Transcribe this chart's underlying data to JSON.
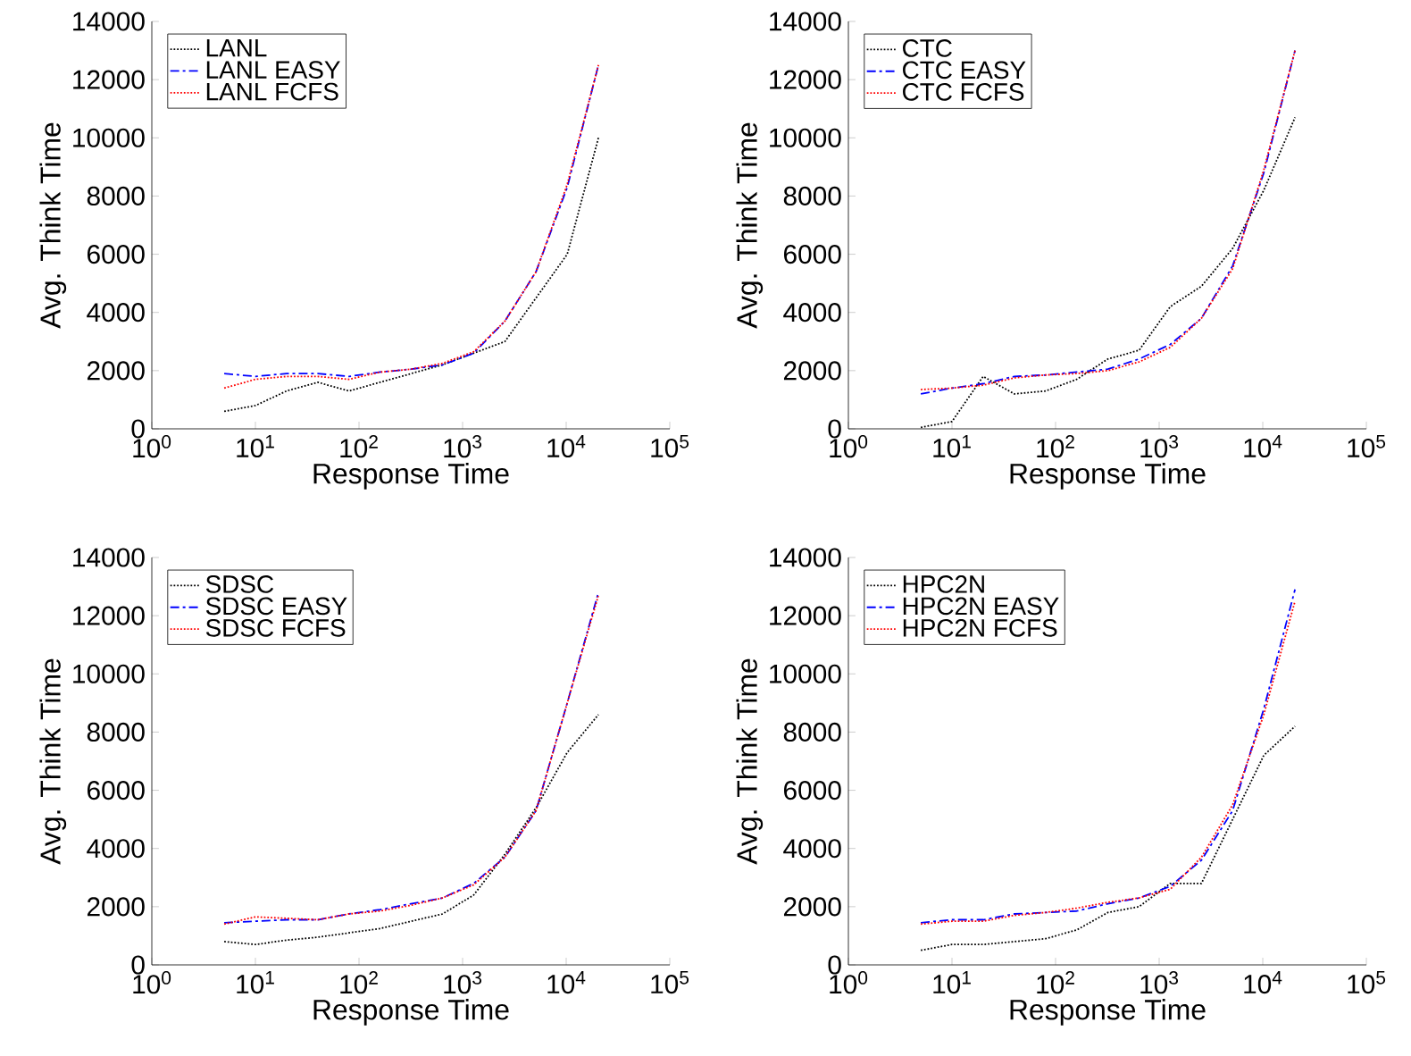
{
  "chart_data": [
    {
      "type": "line",
      "xlabel": "Response Time",
      "ylabel": "Avg. Think Time",
      "log": "x",
      "legend": "top left",
      "grid": false,
      "xlim": [
        1,
        100000
      ],
      "ylim": [
        0,
        14000
      ],
      "xticks": [
        {
          "value": 1,
          "label": "10$^{0}$"
        },
        {
          "value": 10,
          "label": "10$^{1}$"
        },
        {
          "value": 100,
          "label": "10$^{2}$"
        },
        {
          "value": 1000,
          "label": "10$^{3}$"
        },
        {
          "value": 10000,
          "label": "10$^{4}$"
        },
        {
          "value": 100000,
          "label": "10$^{5}$"
        }
      ],
      "yticks": [
        0,
        2000,
        4000,
        6000,
        8000,
        10000,
        12000,
        14000
      ],
      "x": [
        5,
        10,
        20,
        40,
        80,
        160,
        320,
        640,
        1280,
        2560,
        5120,
        10240,
        20480
      ],
      "series": [
        {
          "name": "LANL",
          "color": "#000000",
          "line_style": "dotted",
          "values": [
            600,
            800,
            1300,
            1600,
            1300,
            1600,
            1900,
            2200,
            2600,
            3000,
            4500,
            6000,
            10000
          ]
        },
        {
          "name": "LANL EASY",
          "color": "#0000ff",
          "line_style": "dashed",
          "values": [
            1900,
            1800,
            1900,
            1900,
            1800,
            1950,
            2050,
            2200,
            2600,
            3700,
            5400,
            8300,
            12500
          ]
        },
        {
          "name": "LANL FCFS",
          "color": "#ff0000",
          "line_style": "dotted",
          "values": [
            1400,
            1700,
            1800,
            1800,
            1700,
            1950,
            2050,
            2250,
            2650,
            3700,
            5400,
            8400,
            12500
          ]
        }
      ]
    },
    {
      "type": "line",
      "xlabel": "Response Time",
      "ylabel": "Avg. Think Time",
      "log": "x",
      "legend": "top left",
      "grid": false,
      "xlim": [
        1,
        100000
      ],
      "ylim": [
        0,
        14000
      ],
      "xticks": [
        {
          "value": 1,
          "label": "10$^{0}$"
        },
        {
          "value": 10,
          "label": "10$^{1}$"
        },
        {
          "value": 100,
          "label": "10$^{2}$"
        },
        {
          "value": 1000,
          "label": "10$^{3}$"
        },
        {
          "value": 10000,
          "label": "10$^{4}$"
        },
        {
          "value": 100000,
          "label": "10$^{5}$"
        }
      ],
      "yticks": [
        0,
        2000,
        4000,
        6000,
        8000,
        10000,
        12000,
        14000
      ],
      "x": [
        5,
        10,
        20,
        40,
        80,
        160,
        320,
        640,
        1280,
        2560,
        5120,
        10240,
        20480
      ],
      "series": [
        {
          "name": "CTC",
          "color": "#000000",
          "line_style": "dotted",
          "values": [
            50,
            250,
            1800,
            1200,
            1300,
            1700,
            2400,
            2700,
            4200,
            4900,
            6200,
            8200,
            10700
          ]
        },
        {
          "name": "CTC EASY",
          "color": "#0000ff",
          "line_style": "dashed",
          "values": [
            1200,
            1400,
            1550,
            1800,
            1850,
            1950,
            2050,
            2400,
            2900,
            3800,
            5600,
            8800,
            13000
          ]
        },
        {
          "name": "CTC FCFS",
          "color": "#ff0000",
          "line_style": "dotted",
          "values": [
            1350,
            1400,
            1500,
            1750,
            1850,
            1900,
            2000,
            2300,
            2800,
            3800,
            5500,
            8900,
            13000
          ]
        }
      ]
    },
    {
      "type": "line",
      "xlabel": "Response Time",
      "ylabel": "Avg. Think Time",
      "log": "x",
      "legend": "top left",
      "grid": false,
      "xlim": [
        1,
        100000
      ],
      "ylim": [
        0,
        14000
      ],
      "xticks": [
        {
          "value": 1,
          "label": "10$^{0}$"
        },
        {
          "value": 10,
          "label": "10$^{1}$"
        },
        {
          "value": 100,
          "label": "10$^{2}$"
        },
        {
          "value": 1000,
          "label": "10$^{3}$"
        },
        {
          "value": 10000,
          "label": "10$^{4}$"
        },
        {
          "value": 100000,
          "label": "10$^{5}$"
        }
      ],
      "yticks": [
        0,
        2000,
        4000,
        6000,
        8000,
        10000,
        12000,
        14000
      ],
      "x": [
        5,
        10,
        20,
        40,
        80,
        160,
        320,
        640,
        1280,
        2560,
        5120,
        10240,
        20480
      ],
      "series": [
        {
          "name": "SDSC",
          "color": "#000000",
          "line_style": "dotted",
          "values": [
            800,
            700,
            850,
            950,
            1100,
            1250,
            1500,
            1750,
            2400,
            3800,
            5400,
            7300,
            8600
          ]
        },
        {
          "name": "SDSC EASY",
          "color": "#0000ff",
          "line_style": "dashed",
          "values": [
            1450,
            1500,
            1550,
            1550,
            1750,
            1900,
            2100,
            2300,
            2800,
            3700,
            5300,
            9000,
            12800
          ]
        },
        {
          "name": "SDSC FCFS",
          "color": "#ff0000",
          "line_style": "dotted",
          "values": [
            1400,
            1650,
            1600,
            1550,
            1750,
            1850,
            2050,
            2300,
            2750,
            3700,
            5300,
            9000,
            12700
          ]
        }
      ]
    },
    {
      "type": "line",
      "xlabel": "Response Time",
      "ylabel": "Avg. Think Time",
      "log": "x",
      "legend": "top left",
      "grid": false,
      "xlim": [
        1,
        100000
      ],
      "ylim": [
        0,
        14000
      ],
      "xticks": [
        {
          "value": 1,
          "label": "10$^{0}$"
        },
        {
          "value": 10,
          "label": "10$^{1}$"
        },
        {
          "value": 100,
          "label": "10$^{2}$"
        },
        {
          "value": 1000,
          "label": "10$^{3}$"
        },
        {
          "value": 10000,
          "label": "10$^{4}$"
        },
        {
          "value": 100000,
          "label": "10$^{5}$"
        }
      ],
      "yticks": [
        0,
        2000,
        4000,
        6000,
        8000,
        10000,
        12000,
        14000
      ],
      "x": [
        5,
        10,
        20,
        40,
        80,
        160,
        320,
        640,
        1280,
        2560,
        5120,
        10240,
        20480
      ],
      "series": [
        {
          "name": "HPC2N",
          "color": "#000000",
          "line_style": "dotted",
          "values": [
            500,
            700,
            700,
            800,
            900,
            1200,
            1800,
            2000,
            2800,
            2800,
            5000,
            7200,
            8200
          ]
        },
        {
          "name": "HPC2N EASY",
          "color": "#0000ff",
          "line_style": "dashed",
          "values": [
            1450,
            1550,
            1550,
            1750,
            1800,
            1850,
            2100,
            2300,
            2700,
            3600,
            5300,
            8800,
            12900
          ]
        },
        {
          "name": "HPC2N FCFS",
          "color": "#ff0000",
          "line_style": "dotted",
          "values": [
            1400,
            1500,
            1500,
            1700,
            1800,
            1950,
            2150,
            2300,
            2600,
            3700,
            5500,
            8600,
            12500
          ]
        }
      ]
    }
  ]
}
